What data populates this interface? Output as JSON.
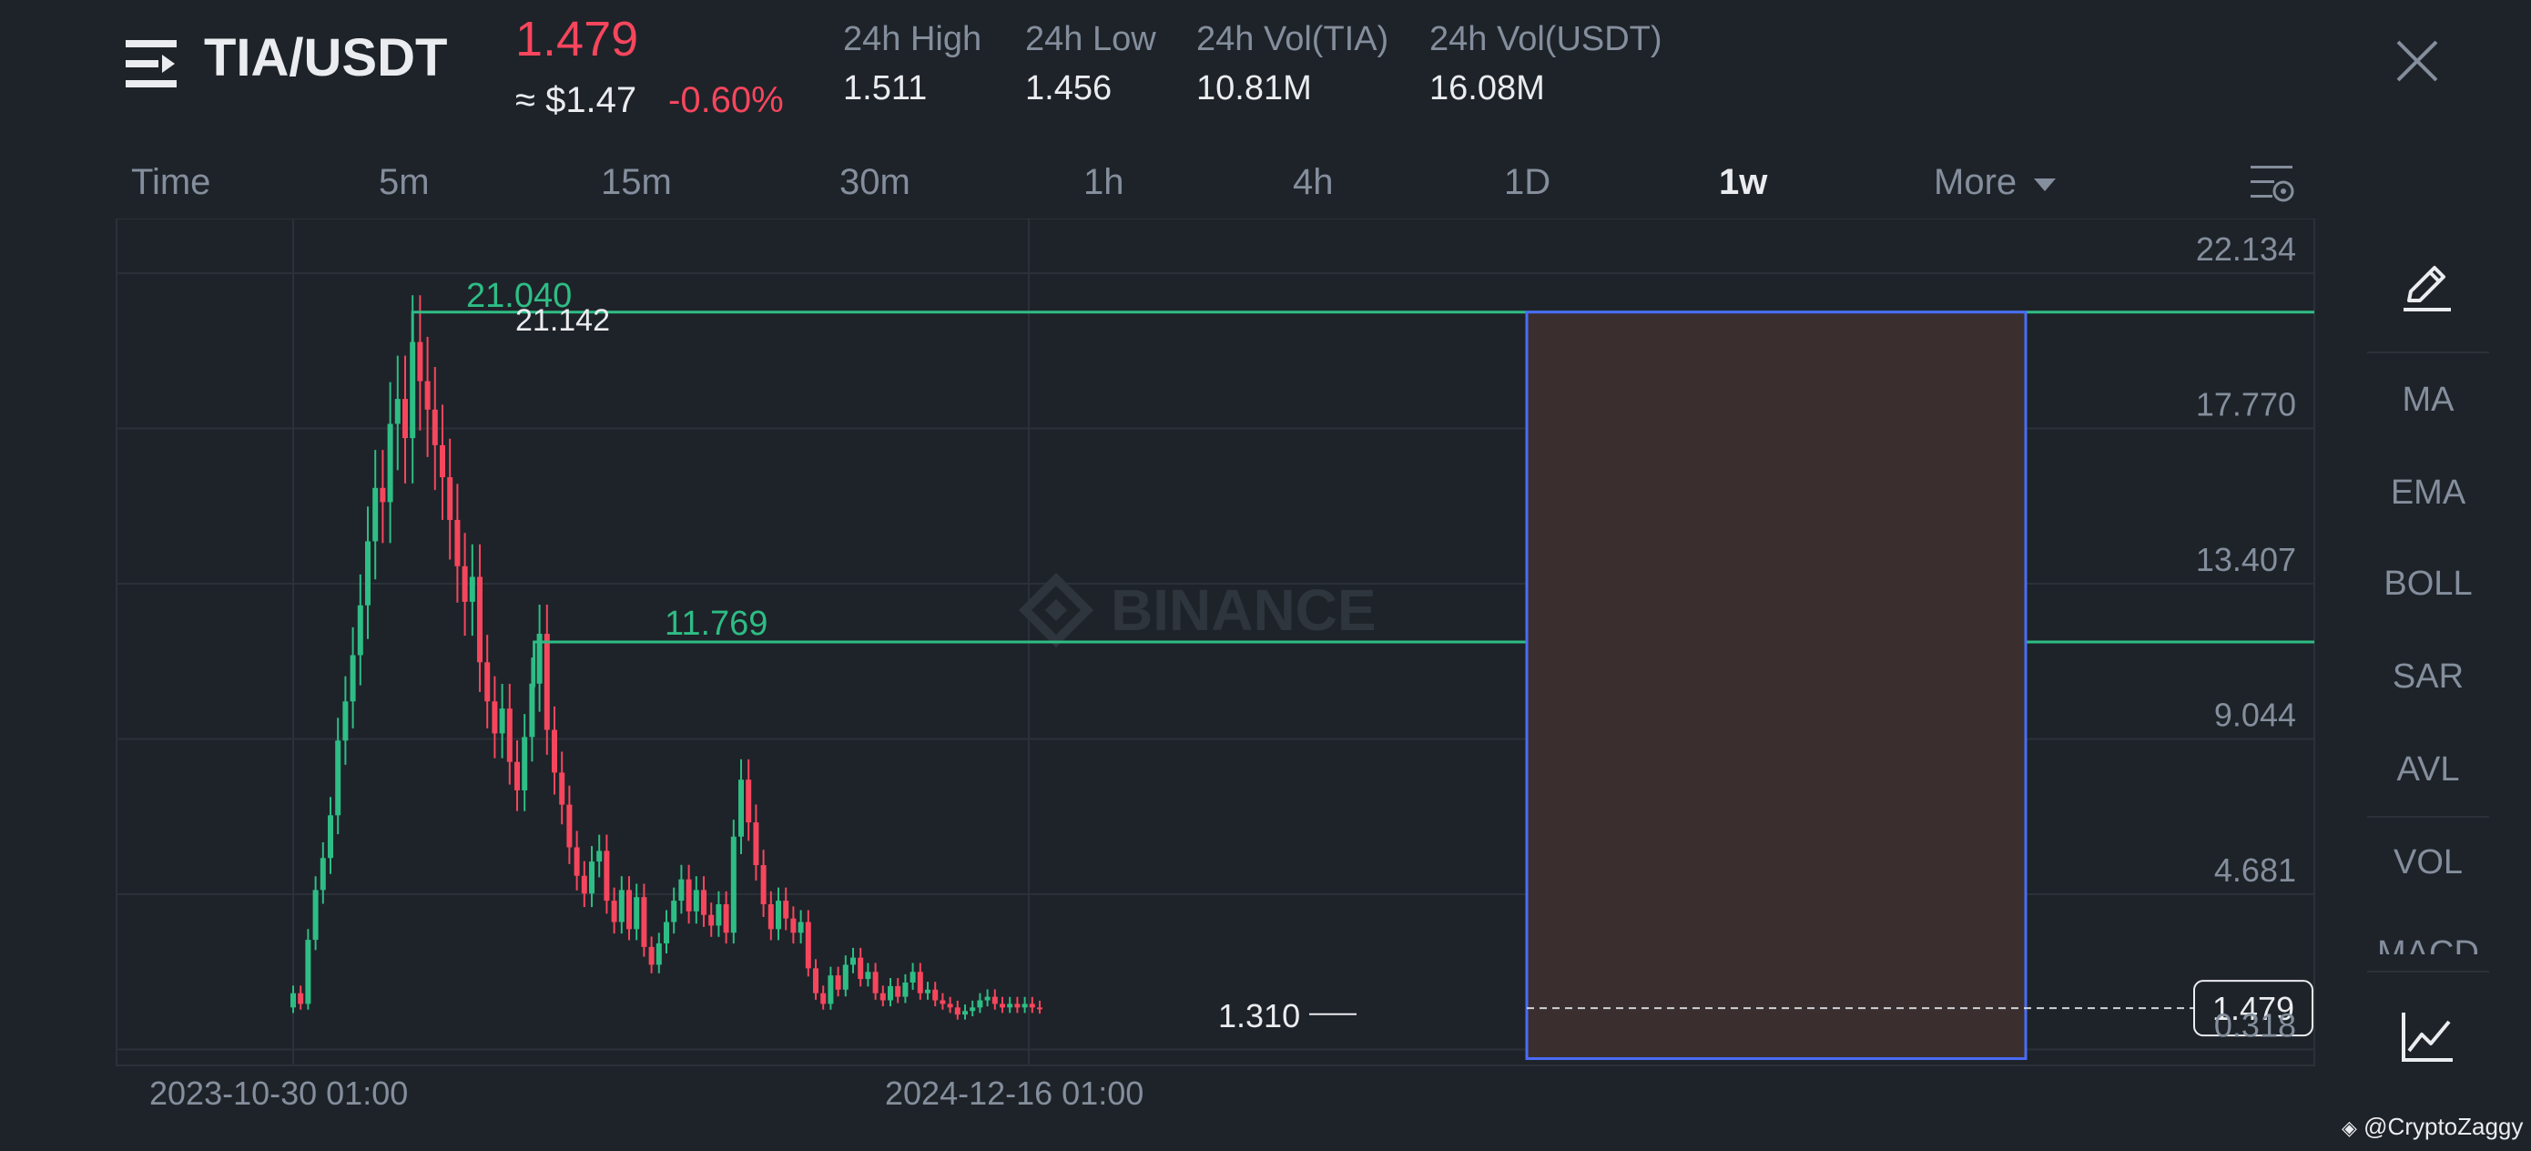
{
  "header": {
    "menu_icon": "menu-lines-icon",
    "pair": "TIA/USDT",
    "last_price": "1.479",
    "usd_price": "≈ $1.47",
    "change_pct": "-0.60%",
    "stats": [
      {
        "label": "24h High",
        "value": "1.511"
      },
      {
        "label": "24h Low",
        "value": "1.456"
      },
      {
        "label": "24h Vol(TIA)",
        "value": "10.81M"
      },
      {
        "label": "24h Vol(USDT)",
        "value": "16.08M"
      }
    ],
    "close_icon": "close-icon"
  },
  "timeframes": {
    "items": [
      "Time",
      "5m",
      "15m",
      "30m",
      "1h",
      "4h",
      "1D",
      "1w",
      "More"
    ],
    "active": "1w",
    "settings_icon": "chart-settings-icon"
  },
  "chart": {
    "watermark": "BINANCE",
    "price_ticks": [
      "22.134",
      "17.770",
      "13.407",
      "9.044",
      "4.681",
      "0.318"
    ],
    "date_ticks": [
      "2023-10-30 01:00",
      "2024-12-16 01:00"
    ],
    "current_price_tag": "1.479",
    "annotations": {
      "high_label": "21.040",
      "high_marker": "21.142",
      "mid_label": "11.769",
      "low_marker": "1.310"
    },
    "colors": {
      "up": "#2ebd85",
      "down": "#f6465d",
      "level_line": "#2ebd85",
      "box_border": "#4a6cf7",
      "box_fill": "#3a2f2e"
    }
  },
  "toolbar": {
    "draw_icon": "pencil-draw-icon",
    "indicators": [
      "MA",
      "EMA",
      "BOLL",
      "SAR",
      "AVL",
      "VOL",
      "MACD"
    ],
    "chart_type_icon": "line-chart-icon"
  },
  "credit": "@CryptoZaggy"
}
